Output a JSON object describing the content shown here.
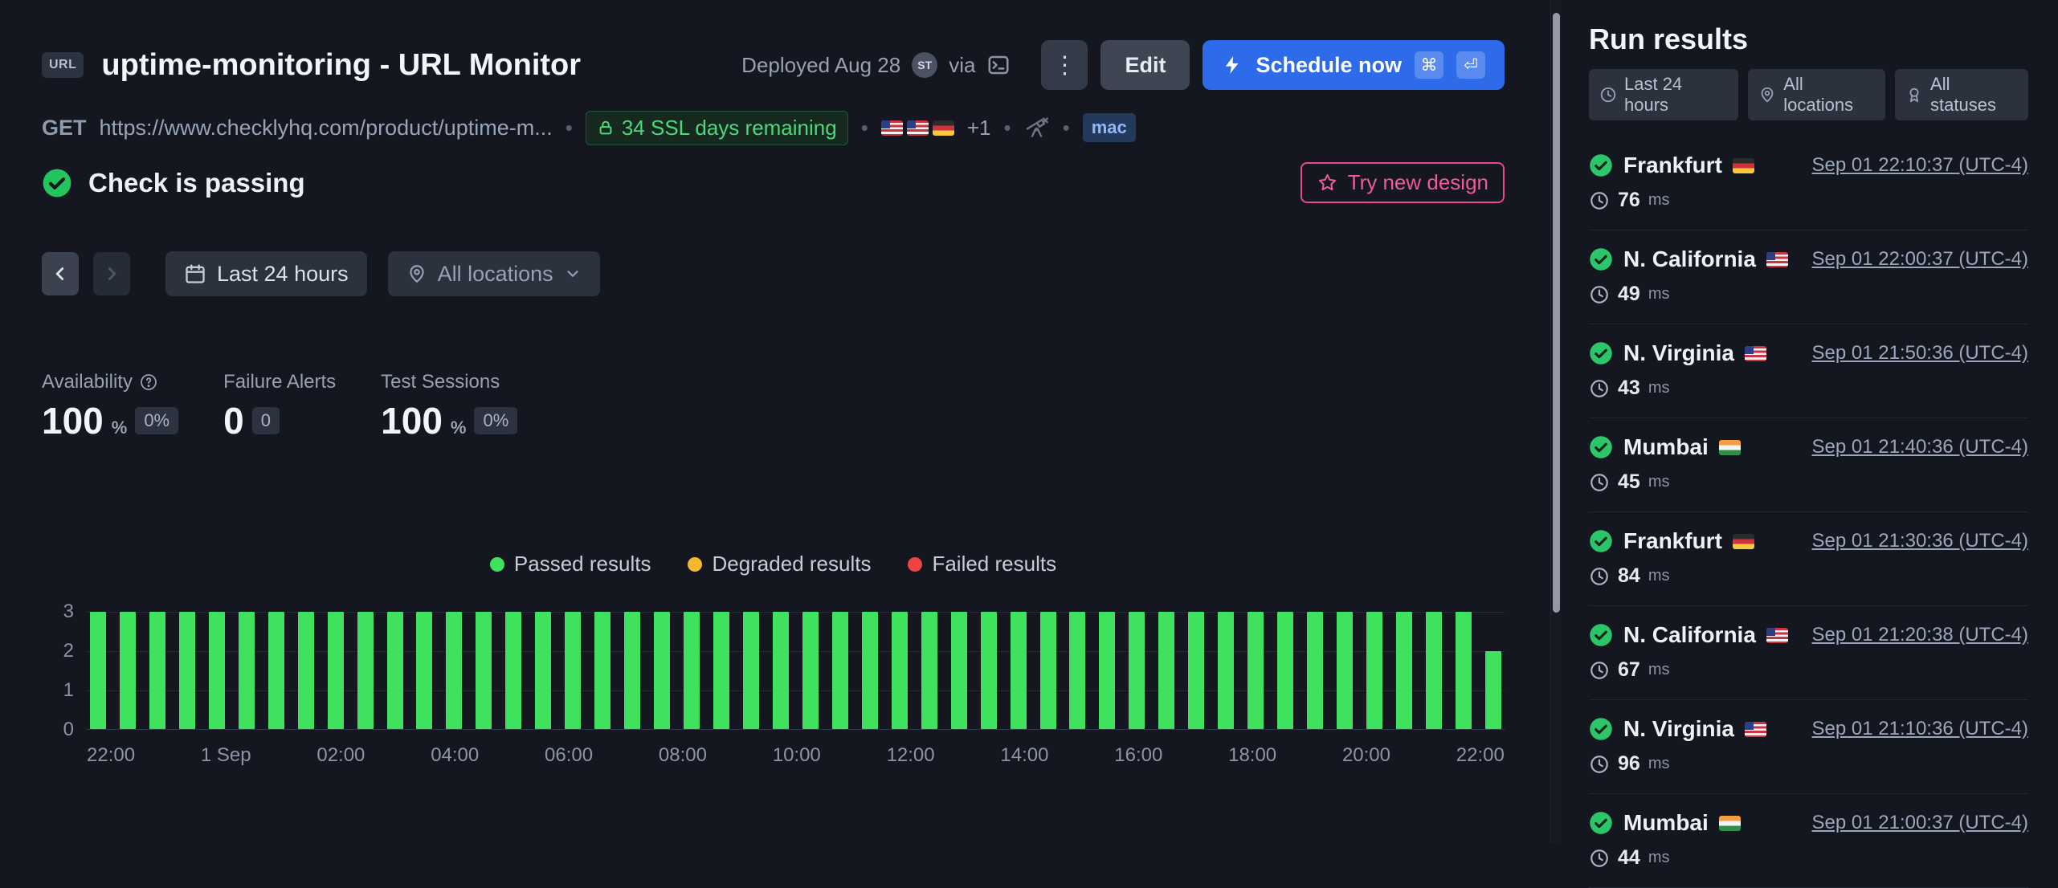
{
  "header": {
    "url_badge": "URL",
    "title": "uptime-monitoring - URL Monitor",
    "deployed": "Deployed Aug 28",
    "avatar_initials": "ST",
    "via_label": "via",
    "edit_label": "Edit",
    "schedule_label": "Schedule now",
    "schedule_keys": [
      "⌘",
      "⏎"
    ],
    "method": "GET",
    "url": "https://www.checklyhq.com/product/uptime-m...",
    "sep": "•",
    "ssl_badge": "34 SSL days remaining",
    "flags": [
      "us",
      "us",
      "de"
    ],
    "flags_more": "+1",
    "mac_badge": "mac",
    "status_text": "Check is passing",
    "try_new_design": "Try new design"
  },
  "filters": {
    "time_range": "Last 24 hours",
    "locations": "All locations"
  },
  "stats": [
    {
      "label": "Availability",
      "value": "100",
      "unit": "%",
      "badge": "0%"
    },
    {
      "label": "Failure Alerts",
      "value": "0",
      "unit": "",
      "badge": "0"
    },
    {
      "label": "Test Sessions",
      "value": "100",
      "unit": "%",
      "badge": "0%"
    }
  ],
  "legend": [
    {
      "label": "Passed results",
      "color": "#3ee25c"
    },
    {
      "label": "Degraded results",
      "color": "#f5b82e"
    },
    {
      "label": "Failed results",
      "color": "#ef4444"
    }
  ],
  "chart_data": {
    "type": "bar",
    "title": "Check results over last 24 hours",
    "ylabel": "",
    "xlabel": "",
    "ylim": [
      0,
      3
    ],
    "yticks": [
      3,
      2,
      1,
      0
    ],
    "xticks": [
      "22:00",
      "1 Sep",
      "02:00",
      "04:00",
      "06:00",
      "08:00",
      "10:00",
      "12:00",
      "14:00",
      "16:00",
      "18:00",
      "20:00",
      "22:00"
    ],
    "bar_color": "#3ee25c",
    "values": [
      3,
      3,
      3,
      3,
      3,
      3,
      3,
      3,
      3,
      3,
      3,
      3,
      3,
      3,
      3,
      3,
      3,
      3,
      3,
      3,
      3,
      3,
      3,
      3,
      3,
      3,
      3,
      3,
      3,
      3,
      3,
      3,
      3,
      3,
      3,
      3,
      3,
      3,
      3,
      3,
      3,
      3,
      3,
      3,
      3,
      3,
      3,
      2
    ]
  },
  "run_results": {
    "title": "Run results",
    "filters": [
      {
        "label": "Last 24 hours"
      },
      {
        "label": "All locations"
      },
      {
        "label": "All statuses"
      }
    ],
    "items": [
      {
        "location": "Frankfurt",
        "flag": "de",
        "timestamp": "Sep 01 22:10:37 (UTC-4)",
        "duration": "76",
        "unit": "ms"
      },
      {
        "location": "N. California",
        "flag": "us",
        "timestamp": "Sep 01 22:00:37 (UTC-4)",
        "duration": "49",
        "unit": "ms"
      },
      {
        "location": "N. Virginia",
        "flag": "us",
        "timestamp": "Sep 01 21:50:36 (UTC-4)",
        "duration": "43",
        "unit": "ms"
      },
      {
        "location": "Mumbai",
        "flag": "in",
        "timestamp": "Sep 01 21:40:36 (UTC-4)",
        "duration": "45",
        "unit": "ms"
      },
      {
        "location": "Frankfurt",
        "flag": "de",
        "timestamp": "Sep 01 21:30:36 (UTC-4)",
        "duration": "84",
        "unit": "ms"
      },
      {
        "location": "N. California",
        "flag": "us",
        "timestamp": "Sep 01 21:20:38 (UTC-4)",
        "duration": "67",
        "unit": "ms"
      },
      {
        "location": "N. Virginia",
        "flag": "us",
        "timestamp": "Sep 01 21:10:36 (UTC-4)",
        "duration": "96",
        "unit": "ms"
      },
      {
        "location": "Mumbai",
        "flag": "in",
        "timestamp": "Sep 01 21:00:37 (UTC-4)",
        "duration": "44",
        "unit": "ms"
      }
    ]
  }
}
